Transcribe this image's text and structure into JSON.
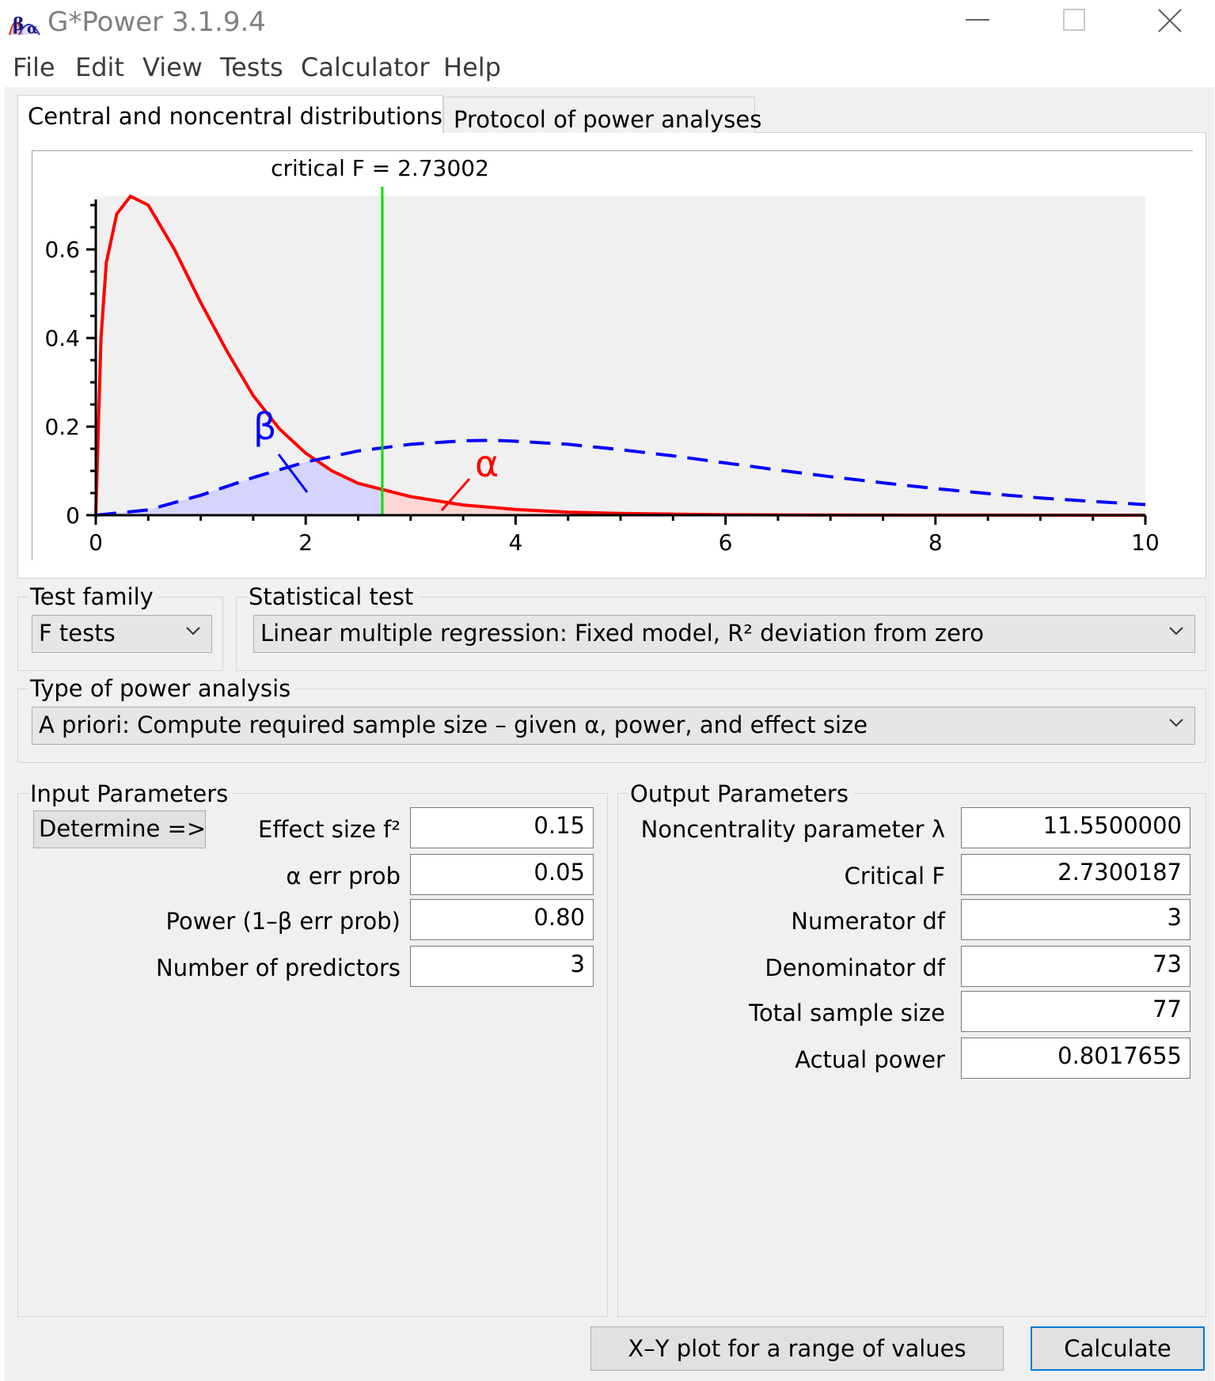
{
  "window": {
    "title": "G*Power 3.1.9.4"
  },
  "menu": [
    "File",
    "Edit",
    "View",
    "Tests",
    "Calculator",
    "Help"
  ],
  "tabs": [
    "Central and noncentral distributions",
    "Protocol of power analyses"
  ],
  "plot": {
    "critical_label": "critical F = 2.73002",
    "beta_symbol": "β",
    "alpha_symbol": "α",
    "colors": {
      "central": "#ff0000",
      "noncentral": "#0000ff",
      "critical_line": "#00dd00",
      "beta_fill": "#d4d4ff",
      "alpha_fill": "#ffd6d6",
      "plot_background": "#f0f0f0"
    }
  },
  "chart_data": {
    "type": "line",
    "xlim": [
      0,
      10
    ],
    "ylim": [
      0,
      0.72
    ],
    "x_ticks": [
      "0",
      "2",
      "4",
      "6",
      "8",
      "10"
    ],
    "y_ticks": [
      "0",
      "0.2",
      "0.4",
      "0.6"
    ],
    "critical_F": 2.73002,
    "series": [
      {
        "style": "solid red",
        "x": [
          0,
          0.05,
          0.1,
          0.2,
          0.33,
          0.5,
          0.75,
          1.0,
          1.25,
          1.5,
          1.75,
          2.0,
          2.25,
          2.5,
          2.73,
          3.0,
          3.5,
          4.0,
          4.5,
          5.0,
          6.0,
          7.0,
          8.0,
          10.0
        ],
        "y": [
          0,
          0.4,
          0.57,
          0.68,
          0.72,
          0.7,
          0.6,
          0.48,
          0.37,
          0.27,
          0.195,
          0.14,
          0.1,
          0.072,
          0.058,
          0.042,
          0.023,
          0.013,
          0.007,
          0.004,
          0.001,
          0.0003,
          0.0001,
          0
        ]
      },
      {
        "style": "dashed blue",
        "x": [
          0,
          0.5,
          1.0,
          1.5,
          2.0,
          2.5,
          3.0,
          3.5,
          3.8,
          4.0,
          4.5,
          5.0,
          5.5,
          6.0,
          6.5,
          7.0,
          7.5,
          8.0,
          8.5,
          9.0,
          9.5,
          10.0
        ],
        "y": [
          0,
          0.012,
          0.045,
          0.085,
          0.12,
          0.145,
          0.16,
          0.168,
          0.169,
          0.167,
          0.16,
          0.148,
          0.134,
          0.118,
          0.102,
          0.087,
          0.073,
          0.06,
          0.049,
          0.039,
          0.031,
          0.024
        ]
      }
    ]
  },
  "test_family": {
    "label": "Test family",
    "value": "F tests"
  },
  "statistical_test": {
    "label": "Statistical test",
    "value": "Linear multiple regression: Fixed model, R² deviation from zero"
  },
  "power_analysis": {
    "label": "Type of power analysis",
    "value": "A priori: Compute required sample size – given α, power, and effect size"
  },
  "input": {
    "label": "Input Parameters",
    "determine_button": "Determine =>",
    "fields": [
      {
        "label": "Effect size f²",
        "value": "0.15"
      },
      {
        "label": "α err prob",
        "value": "0.05"
      },
      {
        "label": "Power (1–β err prob)",
        "value": "0.80"
      },
      {
        "label": "Number of predictors",
        "value": "3"
      }
    ]
  },
  "output": {
    "label": "Output Parameters",
    "fields": [
      {
        "label": "Noncentrality parameter λ",
        "value": "11.5500000"
      },
      {
        "label": "Critical F",
        "value": "2.7300187"
      },
      {
        "label": "Numerator df",
        "value": "3"
      },
      {
        "label": "Denominator df",
        "value": "73"
      },
      {
        "label": "Total sample size",
        "value": "77"
      },
      {
        "label": "Actual power",
        "value": "0.8017655"
      }
    ]
  },
  "buttons": {
    "xy_plot": "X–Y plot for a range of values",
    "calculate": "Calculate"
  }
}
